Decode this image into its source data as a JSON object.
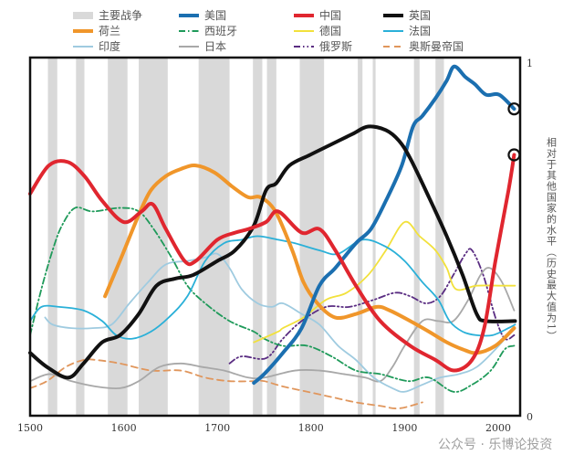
{
  "chart_data": {
    "type": "line",
    "ylabel": "相对于其他国家的水平（历史最大值为1）",
    "xlim": [
      1500,
      2023
    ],
    "ylim": [
      0,
      1
    ],
    "x_ticks": [
      "1500",
      "1600",
      "1700",
      "1800",
      "1900",
      "2000"
    ],
    "y_ticks": [
      "1",
      "0"
    ],
    "legend_placement": "top",
    "wars_label": "主要战争",
    "wars_color": "#d9d9d9",
    "wars": [
      [
        1519,
        1529
      ],
      [
        1549,
        1558
      ],
      [
        1583,
        1604
      ],
      [
        1616,
        1647
      ],
      [
        1680,
        1713
      ],
      [
        1738,
        1748
      ],
      [
        1753,
        1763
      ],
      [
        1788,
        1814
      ],
      [
        1850,
        1855
      ],
      [
        1866,
        1869
      ],
      [
        1910,
        1916
      ],
      [
        1933,
        1942
      ]
    ],
    "series": [
      {
        "name": "美国",
        "color": "#1b6fb0",
        "style": "solid",
        "weight": "thick",
        "end_marker": true,
        "points": [
          [
            1739,
            0.085
          ],
          [
            1750,
            0.11
          ],
          [
            1770,
            0.17
          ],
          [
            1790,
            0.24
          ],
          [
            1809,
            0.36
          ],
          [
            1826,
            0.41
          ],
          [
            1848,
            0.48
          ],
          [
            1864,
            0.52
          ],
          [
            1880,
            0.6
          ],
          [
            1897,
            0.7
          ],
          [
            1909,
            0.81
          ],
          [
            1919,
            0.84
          ],
          [
            1933,
            0.89
          ],
          [
            1945,
            0.94
          ],
          [
            1953,
            0.98
          ],
          [
            1965,
            0.95
          ],
          [
            1975,
            0.93
          ],
          [
            1987,
            0.9
          ],
          [
            2001,
            0.9
          ],
          [
            2017,
            0.86
          ]
        ]
      },
      {
        "name": "中国",
        "color": "#e0262f",
        "style": "solid",
        "weight": "thick",
        "end_marker": true,
        "points": [
          [
            1500,
            0.62
          ],
          [
            1520,
            0.7
          ],
          [
            1540,
            0.71
          ],
          [
            1558,
            0.67
          ],
          [
            1577,
            0.6
          ],
          [
            1600,
            0.54
          ],
          [
            1619,
            0.57
          ],
          [
            1631,
            0.59
          ],
          [
            1645,
            0.52
          ],
          [
            1665,
            0.43
          ],
          [
            1677,
            0.43
          ],
          [
            1700,
            0.49
          ],
          [
            1719,
            0.51
          ],
          [
            1733,
            0.52
          ],
          [
            1752,
            0.54
          ],
          [
            1765,
            0.57
          ],
          [
            1790,
            0.51
          ],
          [
            1809,
            0.52
          ],
          [
            1826,
            0.46
          ],
          [
            1848,
            0.36
          ],
          [
            1874,
            0.26
          ],
          [
            1906,
            0.19
          ],
          [
            1933,
            0.15
          ],
          [
            1953,
            0.12
          ],
          [
            1972,
            0.15
          ],
          [
            1985,
            0.24
          ],
          [
            1997,
            0.43
          ],
          [
            2011,
            0.63
          ],
          [
            2017,
            0.73
          ]
        ]
      },
      {
        "name": "英国",
        "color": "#111111",
        "style": "solid",
        "weight": "thick",
        "points": [
          [
            1500,
            0.17
          ],
          [
            1518,
            0.13
          ],
          [
            1541,
            0.1
          ],
          [
            1557,
            0.14
          ],
          [
            1577,
            0.2
          ],
          [
            1596,
            0.22
          ],
          [
            1616,
            0.28
          ],
          [
            1635,
            0.36
          ],
          [
            1655,
            0.38
          ],
          [
            1674,
            0.39
          ],
          [
            1700,
            0.43
          ],
          [
            1719,
            0.46
          ],
          [
            1739,
            0.53
          ],
          [
            1752,
            0.63
          ],
          [
            1763,
            0.65
          ],
          [
            1777,
            0.7
          ],
          [
            1799,
            0.73
          ],
          [
            1822,
            0.76
          ],
          [
            1845,
            0.79
          ],
          [
            1861,
            0.81
          ],
          [
            1880,
            0.8
          ],
          [
            1894,
            0.77
          ],
          [
            1906,
            0.72
          ],
          [
            1926,
            0.61
          ],
          [
            1945,
            0.5
          ],
          [
            1962,
            0.39
          ],
          [
            1977,
            0.28
          ],
          [
            1987,
            0.26
          ],
          [
            2018,
            0.26
          ]
        ]
      },
      {
        "name": "荷兰",
        "color": "#f0962a",
        "style": "solid",
        "weight": "thick",
        "points": [
          [
            1580,
            0.33
          ],
          [
            1599,
            0.45
          ],
          [
            1616,
            0.56
          ],
          [
            1629,
            0.63
          ],
          [
            1645,
            0.67
          ],
          [
            1661,
            0.69
          ],
          [
            1677,
            0.7
          ],
          [
            1697,
            0.68
          ],
          [
            1716,
            0.64
          ],
          [
            1733,
            0.61
          ],
          [
            1746,
            0.61
          ],
          [
            1762,
            0.57
          ],
          [
            1780,
            0.46
          ],
          [
            1792,
            0.37
          ],
          [
            1807,
            0.31
          ],
          [
            1826,
            0.27
          ],
          [
            1848,
            0.28
          ],
          [
            1870,
            0.3
          ],
          [
            1884,
            0.29
          ],
          [
            1906,
            0.26
          ],
          [
            1926,
            0.23
          ],
          [
            1945,
            0.2
          ],
          [
            1962,
            0.18
          ],
          [
            1977,
            0.17
          ],
          [
            1997,
            0.19
          ],
          [
            2017,
            0.24
          ]
        ]
      },
      {
        "name": "西班牙",
        "color": "#1f9a5a",
        "style": "dashdot",
        "weight": "thin",
        "points": [
          [
            1500,
            0.22
          ],
          [
            1512,
            0.35
          ],
          [
            1524,
            0.46
          ],
          [
            1534,
            0.53
          ],
          [
            1548,
            0.58
          ],
          [
            1567,
            0.57
          ],
          [
            1596,
            0.58
          ],
          [
            1616,
            0.57
          ],
          [
            1632,
            0.52
          ],
          [
            1651,
            0.44
          ],
          [
            1668,
            0.36
          ],
          [
            1687,
            0.31
          ],
          [
            1713,
            0.26
          ],
          [
            1739,
            0.23
          ],
          [
            1750,
            0.21
          ],
          [
            1770,
            0.19
          ],
          [
            1796,
            0.19
          ],
          [
            1822,
            0.16
          ],
          [
            1848,
            0.12
          ],
          [
            1874,
            0.11
          ],
          [
            1904,
            0.09
          ],
          [
            1926,
            0.1
          ],
          [
            1952,
            0.06
          ],
          [
            1972,
            0.08
          ],
          [
            1992,
            0.12
          ],
          [
            2007,
            0.18
          ],
          [
            2017,
            0.19
          ]
        ]
      },
      {
        "name": "德国",
        "color": "#f2e13c",
        "style": "solid",
        "weight": "thin",
        "points": [
          [
            1739,
            0.2
          ],
          [
            1765,
            0.23
          ],
          [
            1770,
            0.24
          ],
          [
            1792,
            0.27
          ],
          [
            1816,
            0.32
          ],
          [
            1838,
            0.34
          ],
          [
            1861,
            0.39
          ],
          [
            1880,
            0.46
          ],
          [
            1900,
            0.54
          ],
          [
            1916,
            0.5
          ],
          [
            1933,
            0.46
          ],
          [
            1945,
            0.41
          ],
          [
            1955,
            0.35
          ],
          [
            1977,
            0.36
          ],
          [
            2004,
            0.36
          ],
          [
            2018,
            0.36
          ]
        ]
      },
      {
        "name": "法国",
        "color": "#2ab0d8",
        "style": "solid",
        "weight": "thin",
        "points": [
          [
            1500,
            0.26
          ],
          [
            1512,
            0.3
          ],
          [
            1531,
            0.3
          ],
          [
            1557,
            0.29
          ],
          [
            1577,
            0.26
          ],
          [
            1592,
            0.22
          ],
          [
            1609,
            0.21
          ],
          [
            1629,
            0.23
          ],
          [
            1648,
            0.27
          ],
          [
            1668,
            0.33
          ],
          [
            1687,
            0.43
          ],
          [
            1707,
            0.48
          ],
          [
            1726,
            0.49
          ],
          [
            1743,
            0.5
          ],
          [
            1765,
            0.49
          ],
          [
            1783,
            0.48
          ],
          [
            1809,
            0.46
          ],
          [
            1829,
            0.45
          ],
          [
            1855,
            0.49
          ],
          [
            1880,
            0.47
          ],
          [
            1900,
            0.43
          ],
          [
            1919,
            0.37
          ],
          [
            1936,
            0.32
          ],
          [
            1948,
            0.26
          ],
          [
            1962,
            0.23
          ],
          [
            1977,
            0.22
          ],
          [
            1994,
            0.22
          ],
          [
            2011,
            0.24
          ],
          [
            2018,
            0.25
          ]
        ]
      },
      {
        "name": "印度",
        "color": "#9fcbe0",
        "style": "solid",
        "weight": "thin",
        "points": [
          [
            1516,
            0.27
          ],
          [
            1524,
            0.25
          ],
          [
            1544,
            0.24
          ],
          [
            1567,
            0.24
          ],
          [
            1587,
            0.25
          ],
          [
            1606,
            0.31
          ],
          [
            1626,
            0.37
          ],
          [
            1645,
            0.42
          ],
          [
            1668,
            0.43
          ],
          [
            1687,
            0.44
          ],
          [
            1700,
            0.45
          ],
          [
            1713,
            0.41
          ],
          [
            1726,
            0.35
          ],
          [
            1743,
            0.31
          ],
          [
            1758,
            0.3
          ],
          [
            1770,
            0.31
          ],
          [
            1790,
            0.28
          ],
          [
            1809,
            0.25
          ],
          [
            1829,
            0.19
          ],
          [
            1848,
            0.15
          ],
          [
            1867,
            0.1
          ],
          [
            1887,
            0.07
          ],
          [
            1900,
            0.06
          ],
          [
            1919,
            0.08
          ],
          [
            1938,
            0.1
          ],
          [
            1958,
            0.11
          ],
          [
            1977,
            0.13
          ],
          [
            1997,
            0.18
          ],
          [
            2017,
            0.24
          ]
        ]
      },
      {
        "name": "日本",
        "color": "#a8a8a8",
        "style": "solid",
        "weight": "thin",
        "points": [
          [
            1500,
            0.09
          ],
          [
            1521,
            0.11
          ],
          [
            1544,
            0.09
          ],
          [
            1570,
            0.075
          ],
          [
            1596,
            0.07
          ],
          [
            1616,
            0.09
          ],
          [
            1638,
            0.13
          ],
          [
            1661,
            0.14
          ],
          [
            1684,
            0.13
          ],
          [
            1707,
            0.12
          ],
          [
            1733,
            0.1
          ],
          [
            1750,
            0.1
          ],
          [
            1783,
            0.12
          ],
          [
            1809,
            0.12
          ],
          [
            1835,
            0.11
          ],
          [
            1858,
            0.1
          ],
          [
            1874,
            0.09
          ],
          [
            1887,
            0.13
          ],
          [
            1900,
            0.19
          ],
          [
            1919,
            0.26
          ],
          [
            1936,
            0.26
          ],
          [
            1952,
            0.26
          ],
          [
            1968,
            0.32
          ],
          [
            1981,
            0.39
          ],
          [
            1991,
            0.41
          ],
          [
            2004,
            0.37
          ],
          [
            2017,
            0.29
          ]
        ]
      },
      {
        "name": "俄罗斯",
        "color": "#5a2d82",
        "style": "dashdotdot",
        "weight": "thin",
        "points": [
          [
            1713,
            0.14
          ],
          [
            1726,
            0.16
          ],
          [
            1752,
            0.155
          ],
          [
            1770,
            0.21
          ],
          [
            1790,
            0.26
          ],
          [
            1816,
            0.3
          ],
          [
            1841,
            0.3
          ],
          [
            1867,
            0.32
          ],
          [
            1890,
            0.34
          ],
          [
            1906,
            0.33
          ],
          [
            1923,
            0.31
          ],
          [
            1938,
            0.33
          ],
          [
            1952,
            0.39
          ],
          [
            1965,
            0.45
          ],
          [
            1972,
            0.46
          ],
          [
            1984,
            0.39
          ],
          [
            1997,
            0.27
          ],
          [
            2007,
            0.21
          ],
          [
            2017,
            0.22
          ]
        ]
      },
      {
        "name": "奥斯曼帝国",
        "color": "#e0965c",
        "style": "dashed",
        "weight": "thin",
        "points": [
          [
            1500,
            0.07
          ],
          [
            1518,
            0.09
          ],
          [
            1538,
            0.13
          ],
          [
            1557,
            0.15
          ],
          [
            1570,
            0.15
          ],
          [
            1596,
            0.14
          ],
          [
            1629,
            0.12
          ],
          [
            1661,
            0.12
          ],
          [
            1687,
            0.1
          ],
          [
            1713,
            0.09
          ],
          [
            1739,
            0.09
          ],
          [
            1750,
            0.09
          ],
          [
            1770,
            0.075
          ],
          [
            1796,
            0.06
          ],
          [
            1822,
            0.045
          ],
          [
            1848,
            0.03
          ],
          [
            1874,
            0.02
          ],
          [
            1894,
            0.013
          ],
          [
            1919,
            0.03
          ]
        ]
      }
    ]
  },
  "watermark": "公众号 · 乐博论投资"
}
